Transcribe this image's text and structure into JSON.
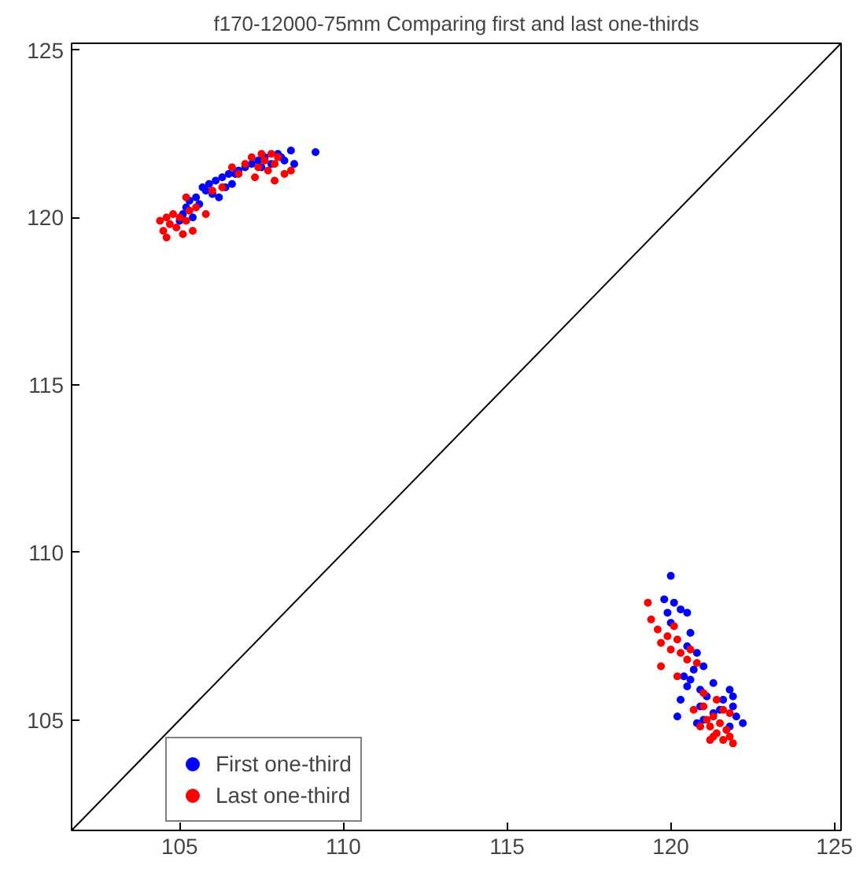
{
  "chart_data": {
    "type": "scatter",
    "title": "f170-12000-75mm Comparing first and last one-thirds",
    "xlim": [
      101.7,
      125.2
    ],
    "ylim": [
      101.7,
      125.2
    ],
    "xticks": [
      105,
      110,
      115,
      120,
      125
    ],
    "yticks": [
      105,
      110,
      115,
      120,
      125
    ],
    "grid": false,
    "legend": "bottom left",
    "series": [
      {
        "name": "First one-third",
        "color": "#0000ff",
        "marker": "circle",
        "x": [
          105.0,
          105.2,
          105.3,
          105.5,
          105.6,
          105.8,
          105.9,
          106.0,
          106.1,
          106.3,
          106.4,
          106.5,
          106.6,
          106.8,
          107.0,
          107.2,
          107.4,
          107.6,
          107.8,
          108.0,
          108.2,
          108.4,
          108.5,
          109.15,
          105.4,
          106.2,
          106.7,
          107.5,
          108.1,
          105.1,
          105.7,
          120.0,
          119.8,
          119.9,
          120.1,
          120.3,
          120.5,
          120.0,
          120.6,
          120.5,
          120.8,
          120.7,
          121.0,
          120.4,
          120.5,
          120.6,
          120.3,
          120.9,
          121.1,
          121.3,
          120.9,
          121.0,
          120.2,
          121.5,
          121.6,
          121.8,
          121.9,
          122.0,
          122.2,
          121.8,
          121.3,
          120.8,
          121.9
        ],
        "values": [
          119.9,
          120.3,
          120.5,
          120.6,
          120.4,
          120.8,
          121.0,
          120.7,
          121.1,
          121.2,
          120.9,
          121.3,
          121.0,
          121.4,
          121.5,
          121.6,
          121.7,
          121.8,
          121.6,
          121.9,
          121.7,
          122.0,
          121.6,
          121.95,
          120.0,
          120.6,
          121.3,
          121.5,
          121.8,
          120.1,
          120.9,
          109.3,
          108.6,
          108.2,
          108.5,
          108.3,
          108.2,
          107.9,
          107.6,
          107.2,
          107.0,
          106.5,
          106.6,
          106.3,
          106.0,
          106.2,
          105.6,
          105.9,
          105.7,
          106.1,
          105.4,
          105.0,
          105.1,
          105.3,
          105.6,
          105.9,
          105.4,
          105.1,
          104.9,
          104.8,
          105.2,
          104.9,
          105.7
        ]
      },
      {
        "name": "Last one-third",
        "color": "#ff0000",
        "marker": "circle",
        "x": [
          104.4,
          104.5,
          104.6,
          104.7,
          104.8,
          104.9,
          105.0,
          105.1,
          105.2,
          105.3,
          104.6,
          105.5,
          105.4,
          105.8,
          105.2,
          106.0,
          106.3,
          106.8,
          107.0,
          107.2,
          107.4,
          107.5,
          107.6,
          107.7,
          107.8,
          107.9,
          108.0,
          108.2,
          108.4,
          107.3,
          106.6,
          107.9,
          119.3,
          119.4,
          119.6,
          119.7,
          119.9,
          120.0,
          120.2,
          120.3,
          120.1,
          120.5,
          120.6,
          119.7,
          120.8,
          120.2,
          121.0,
          121.1,
          121.2,
          121.3,
          121.4,
          121.5,
          121.6,
          121.7,
          121.8,
          121.2,
          121.9,
          121.4,
          120.9,
          121.6,
          121.0,
          120.7,
          121.8,
          121.3
        ],
        "values": [
          119.9,
          119.6,
          119.4,
          119.8,
          120.1,
          119.7,
          120.0,
          119.5,
          119.9,
          120.2,
          120.0,
          120.3,
          119.6,
          120.1,
          120.6,
          120.8,
          120.9,
          121.3,
          121.6,
          121.8,
          121.5,
          121.9,
          121.7,
          121.4,
          121.9,
          121.6,
          121.8,
          121.3,
          121.4,
          121.2,
          121.5,
          121.1,
          108.5,
          108.0,
          107.7,
          107.3,
          107.5,
          107.1,
          107.4,
          107.0,
          107.8,
          106.8,
          107.1,
          106.6,
          106.7,
          106.3,
          105.4,
          105.0,
          104.8,
          105.1,
          104.6,
          104.9,
          105.3,
          104.7,
          104.5,
          104.4,
          104.3,
          105.6,
          104.8,
          104.4,
          105.8,
          105.3,
          105.2,
          104.5
        ]
      },
      {
        "color": "#000000",
        "type": "line",
        "x": [
          101.7,
          125.2
        ],
        "values": [
          101.7,
          125.2
        ]
      }
    ]
  }
}
